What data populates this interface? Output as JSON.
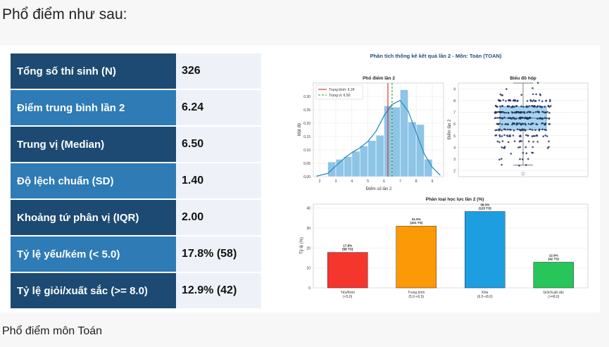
{
  "heading": "Phổ điểm như sau:",
  "footer": "Phổ điểm môn Toán",
  "stats": [
    {
      "label": "Tổng số thí sinh (N)",
      "value": "326"
    },
    {
      "label": "Điểm trung bình lần 2",
      "value": "6.24"
    },
    {
      "label": "Trung vị (Median)",
      "value": "6.50"
    },
    {
      "label": "Độ lệch chuẩn (SD)",
      "value": "1.40"
    },
    {
      "label": "Khoảng tứ phân vị (IQR)",
      "value": "2.00"
    },
    {
      "label": "Tỷ lệ yếu/kém (< 5.0)",
      "value": "17.8% (58)"
    },
    {
      "label": "Tỷ lệ giỏi/xuất sắc (>= 8.0)",
      "value": "12.9% (42)"
    }
  ],
  "figure_title": "Phân tích thống kê kết quả lần 2 - Môn: Toán (TOAN)",
  "colors": {
    "dark_row": "#1c4a72",
    "light_row": "#2e7bb5",
    "hist": "#8ec5e6",
    "mean": "#d62728",
    "median": "#2ca02c"
  },
  "chart_data": [
    {
      "type": "bar",
      "title": "Phổ điểm lần 2",
      "xlabel": "Điểm số lần 2",
      "ylabel": "Mật độ",
      "xlim": [
        1.6,
        9.7
      ],
      "ylim": [
        0,
        0.35
      ],
      "xticks": [
        "2",
        "3",
        "4",
        "5",
        "6",
        "7",
        "8",
        "9"
      ],
      "yticks": [
        "0.00",
        "0.05",
        "0.10",
        "0.15",
        "0.20",
        "0.25",
        "0.30"
      ],
      "bins": [
        2.75,
        3.25,
        3.75,
        4.25,
        4.75,
        5.25,
        5.75,
        6.25,
        6.75,
        7.25,
        7.75,
        8.25,
        8.75
      ],
      "values": [
        0.055,
        0.065,
        0.075,
        0.095,
        0.115,
        0.135,
        0.155,
        0.265,
        0.26,
        0.325,
        0.205,
        0.195,
        0.065
      ],
      "density_x": [
        1.8,
        2.5,
        3.0,
        3.5,
        4.0,
        4.5,
        5.0,
        5.5,
        6.0,
        6.5,
        7.0,
        7.5,
        8.0,
        8.5,
        9.0,
        9.5
      ],
      "density_y": [
        0.002,
        0.012,
        0.04,
        0.068,
        0.09,
        0.108,
        0.132,
        0.17,
        0.228,
        0.27,
        0.285,
        0.245,
        0.165,
        0.085,
        0.035,
        0.005
      ],
      "mean": 6.24,
      "median": 6.5,
      "legend": [
        {
          "name": "Trung bình: 6.24"
        },
        {
          "name": "Trung vị: 6.50"
        }
      ]
    },
    {
      "type": "scatter",
      "title": "Biểu đồ hộp",
      "ylabel": "Điểm lần 2",
      "ylim": [
        1.5,
        9.5
      ],
      "yticks": [
        "2",
        "3",
        "4",
        "5",
        "6",
        "7",
        "8",
        "9"
      ],
      "box": {
        "q1": 5.5,
        "median": 6.5,
        "q3": 7.5,
        "whisker_low": 2.5,
        "whisker_high": 9.5
      },
      "outliers": [
        1.75
      ]
    },
    {
      "type": "bar",
      "title": "Phân loại học lực lần 2 (%)",
      "ylabel": "Tỷ lệ (%)",
      "ylim": [
        0,
        42
      ],
      "yticks": [
        "0",
        "10",
        "20",
        "30",
        "40"
      ],
      "categories": [
        {
          "name": "Yếu/Kém",
          "range": "(<5.0)"
        },
        {
          "name": "Trung bình",
          "range": "(5.0-<6.5)"
        },
        {
          "name": "Khá",
          "range": "(6.5-<8.0)"
        },
        {
          "name": "Giỏi/Xuất sắc",
          "range": "(>=8.0)"
        }
      ],
      "values": [
        17.8,
        31.0,
        38.3,
        12.9
      ],
      "labels": [
        {
          "pct": "17.8%",
          "count": "(58 TS)"
        },
        {
          "pct": "31.0%",
          "count": "(101 TS)"
        },
        {
          "pct": "38.3%",
          "count": "(125 TS)"
        },
        {
          "pct": "12.9%",
          "count": "(42 TS)"
        }
      ],
      "colors": [
        "#f5362d",
        "#fb9a06",
        "#1d9ee0",
        "#28c55a"
      ]
    }
  ]
}
